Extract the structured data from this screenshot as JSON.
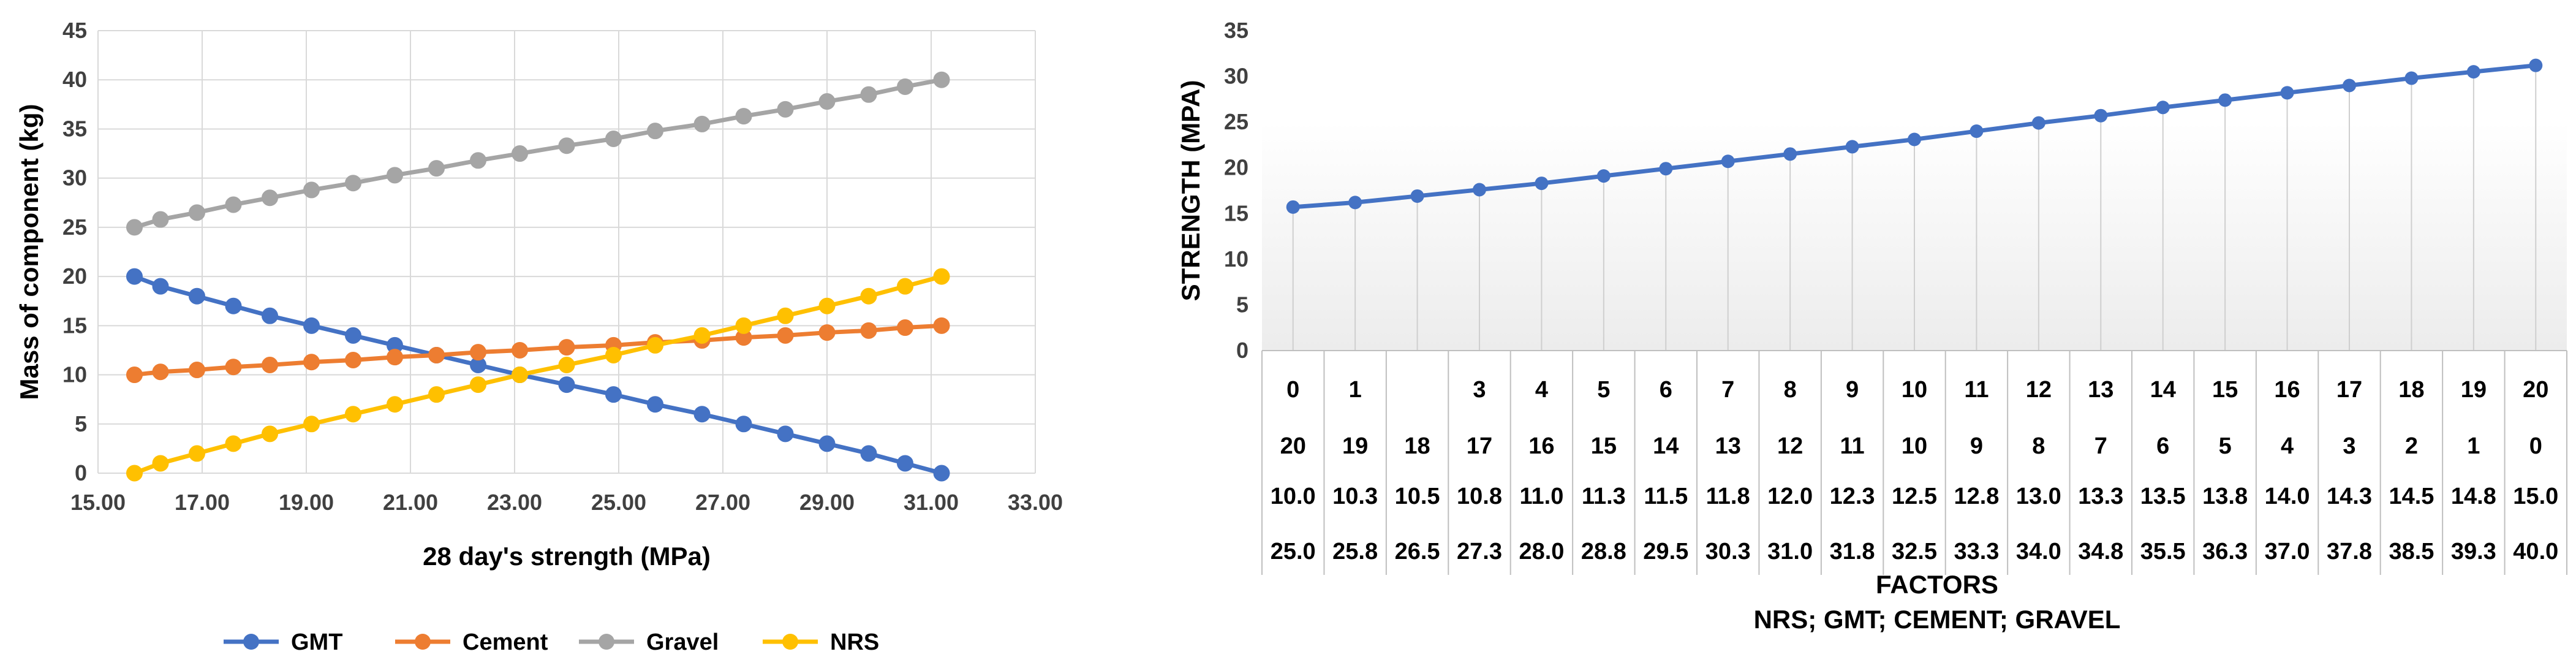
{
  "charts": [
    {
      "id": "chart1",
      "chart_data": {
        "type": "line",
        "xlabel": "28 day's strength (MPa)",
        "ylabel": "Mass of component (kg)",
        "xlim": [
          15.0,
          33.0
        ],
        "ylim": [
          0,
          45
        ],
        "x_ticks": [
          "15.00",
          "17.00",
          "19.00",
          "21.00",
          "23.00",
          "25.00",
          "27.00",
          "29.00",
          "31.00",
          "33.00"
        ],
        "y_ticks": [
          "0",
          "5",
          "10",
          "15",
          "20",
          "25",
          "30",
          "35",
          "40",
          "45"
        ],
        "grid": true,
        "legend": "bottom",
        "x": [
          15.7,
          16.2,
          16.9,
          17.6,
          18.3,
          19.1,
          19.9,
          20.7,
          21.5,
          22.3,
          23.1,
          24.0,
          24.9,
          25.7,
          26.6,
          27.4,
          28.2,
          29.0,
          29.8,
          30.5,
          31.2
        ],
        "series": [
          {
            "name": "GMT",
            "color": "#4472C4",
            "values": [
              20,
              19,
              18,
              17,
              16,
              15,
              14,
              13,
              12,
              11,
              10,
              9,
              8,
              7,
              6,
              5,
              4,
              3,
              2,
              1,
              0
            ]
          },
          {
            "name": "Cement",
            "color": "#ED7D31",
            "values": [
              10.0,
              10.3,
              10.5,
              10.8,
              11.0,
              11.3,
              11.5,
              11.8,
              12.0,
              12.3,
              12.5,
              12.8,
              13.0,
              13.3,
              13.5,
              13.8,
              14.0,
              14.3,
              14.5,
              14.8,
              15.0
            ]
          },
          {
            "name": "Gravel",
            "color": "#A5A5A5",
            "values": [
              25.0,
              25.8,
              26.5,
              27.3,
              28.0,
              28.8,
              29.5,
              30.3,
              31.0,
              31.8,
              32.5,
              33.3,
              34.0,
              34.8,
              35.5,
              36.3,
              37.0,
              37.8,
              38.5,
              39.3,
              40.0
            ]
          },
          {
            "name": "NRS",
            "color": "#FFC000",
            "values": [
              0,
              1,
              2,
              3,
              4,
              5,
              6,
              7,
              8,
              9,
              10,
              11,
              12,
              13,
              14,
              15,
              16,
              17,
              18,
              19,
              20
            ]
          }
        ]
      }
    },
    {
      "id": "chart2",
      "chart_data": {
        "type": "line",
        "ylabel": "STRENGTH (MPA)",
        "xlabel": "FACTORS",
        "xlabel2": "NRS; GMT; CEMENT; GRAVEL",
        "ylim": [
          0,
          35
        ],
        "y_ticks": [
          "0",
          "5",
          "10",
          "15",
          "20",
          "25",
          "30",
          "35"
        ],
        "legend": "none",
        "series": [
          {
            "name": "",
            "color": "#4472C4",
            "values": [
              15.7,
              16.2,
              16.9,
              17.6,
              18.3,
              19.1,
              19.9,
              20.7,
              21.5,
              22.3,
              23.1,
              24.0,
              24.9,
              25.7,
              26.6,
              27.4,
              28.2,
              29.0,
              29.8,
              30.5,
              31.2
            ]
          }
        ],
        "table_rows": [
          [
            "0",
            "1",
            "",
            "3",
            "4",
            "5",
            "6",
            "7",
            "8",
            "9",
            "10",
            "11",
            "12",
            "13",
            "14",
            "15",
            "16",
            "17",
            "18",
            "19",
            "20"
          ],
          [
            "20",
            "19",
            "18",
            "17",
            "16",
            "15",
            "14",
            "13",
            "12",
            "11",
            "10",
            "9",
            "8",
            "7",
            "6",
            "5",
            "4",
            "3",
            "2",
            "1",
            "0"
          ],
          [
            "10.0",
            "10.3",
            "10.5",
            "10.8",
            "11.0",
            "11.3",
            "11.5",
            "11.8",
            "12.0",
            "12.3",
            "12.5",
            "12.8",
            "13.0",
            "13.3",
            "13.5",
            "13.8",
            "14.0",
            "14.3",
            "14.5",
            "14.8",
            "15.0"
          ],
          [
            "25.0",
            "25.8",
            "26.5",
            "27.3",
            "28.0",
            "28.8",
            "29.5",
            "30.3",
            "31.0",
            "31.8",
            "32.5",
            "33.3",
            "34.0",
            "34.8",
            "35.5",
            "36.3",
            "37.0",
            "37.8",
            "38.5",
            "39.3",
            "40.0"
          ]
        ]
      }
    }
  ]
}
